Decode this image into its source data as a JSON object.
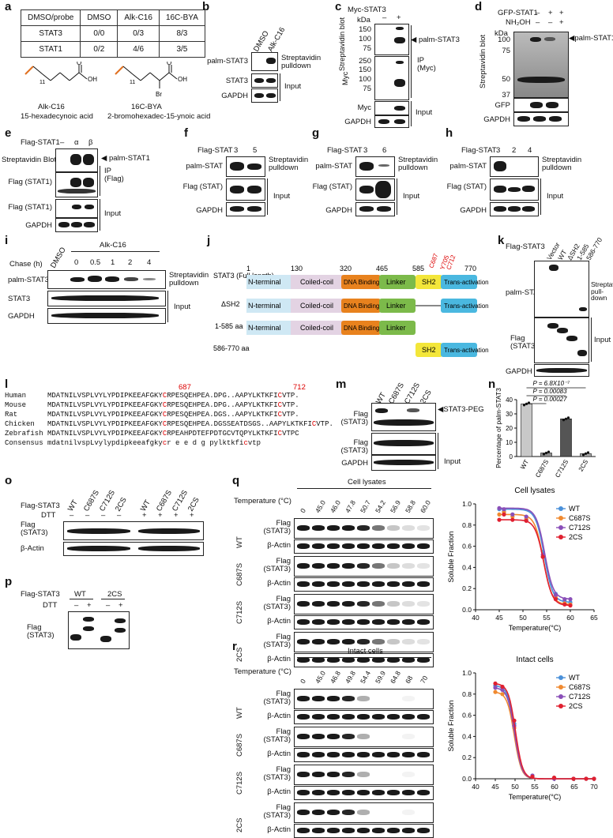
{
  "panels": [
    "a",
    "b",
    "c",
    "d",
    "e",
    "f",
    "g",
    "h",
    "i",
    "j",
    "k",
    "l",
    "m",
    "n",
    "o",
    "p",
    "q",
    "r"
  ],
  "a": {
    "header": [
      "DMSO/probe",
      "DMSO",
      "Alk-C16",
      "16C-BYA"
    ],
    "rows": [
      [
        "STAT3",
        "0/0",
        "0/3",
        "8/3"
      ],
      [
        "STAT1",
        "0/2",
        "4/6",
        "3/5"
      ]
    ],
    "chem1_label": "Alk-C16",
    "chem1_name": "15-hexadecynoic acid",
    "chem2_label": "16C-BYA",
    "chem2_name": "2-bromohexadec-15-ynoic acid",
    "subscript": "11",
    "br": "Br",
    "oh": "OH",
    "o": "O"
  },
  "b": {
    "cols": [
      "DMSO",
      "Alk-C16"
    ],
    "rows": [
      "palm-STAT3",
      "STAT3",
      "GAPDH"
    ],
    "right1": "Streptavidin pulldown",
    "right2": "Input"
  },
  "c": {
    "top": "Myc-STAT3",
    "signs": [
      "–",
      "+"
    ],
    "kda": "kDa",
    "left1": "Streptavidin blot",
    "left2": "Myc",
    "ladder1": [
      "150",
      "100",
      "75"
    ],
    "ladder2": [
      "250",
      "150",
      "100",
      "75"
    ],
    "arrow": "palm-STAT3",
    "ip": "IP (Myc)",
    "rows": [
      "Myc",
      "GAPDH"
    ],
    "input": "Input"
  },
  "d": {
    "top1": "GFP-STAT1",
    "top2": "NH₂OH",
    "signs1": [
      "–",
      "+",
      "+"
    ],
    "signs2": [
      "–",
      "–",
      "+"
    ],
    "kda": "kDa",
    "ladder": [
      "100",
      "75",
      "50",
      "37"
    ],
    "left": "Streptavidin blot",
    "arrow": "palm-STAT1",
    "rows": [
      "GFP",
      "GAPDH"
    ]
  },
  "e": {
    "top": "Flag-STAT1",
    "cols": [
      "–",
      "α",
      "β"
    ],
    "rows": [
      "Streptavidin Blot",
      "Flag (STAT1)",
      "Flag (STAT1)",
      "GAPDH"
    ],
    "arrow": "palm-STAT1",
    "ip": "IP (Flag)",
    "input": "Input"
  },
  "f": {
    "top": "Flag-STAT",
    "cols": [
      "3",
      "5"
    ],
    "rows": [
      "palm-STAT",
      "Flag (STAT)",
      "GAPDH"
    ],
    "right1": "Streptavidin pulldown",
    "right2": "Input"
  },
  "g": {
    "top": "Flag-STAT",
    "cols": [
      "3",
      "6"
    ],
    "rows": [
      "palm-STAT",
      "Flag (STAT)",
      "GAPDH"
    ],
    "right1": "Streptavidin pulldown",
    "right2": "Input"
  },
  "h": {
    "top": "Flag-STAT",
    "cols": [
      "3",
      "2",
      "4"
    ],
    "rows": [
      "palm-STAT",
      "Flag (STAT)",
      "GAPDH"
    ],
    "right1": "Streptavidin pulldown",
    "right2": "Input"
  },
  "i": {
    "treat": "Alk-C16",
    "chase": "Chase (h)",
    "cols": [
      "DMSO",
      "0",
      "0.5",
      "1",
      "2",
      "4"
    ],
    "rows": [
      "palm-STAT3",
      "STAT3",
      "GAPDH"
    ],
    "right1": "Streptavidin pulldown",
    "right2": "Input"
  },
  "j": {
    "numbers": [
      "1",
      "130",
      "320",
      "465",
      "585",
      "770"
    ],
    "sites": [
      "C687",
      "Y705",
      "C712"
    ],
    "full": "STAT3 (Full length)",
    "dsh2": "ΔSH2",
    "c585": "1-585 aa",
    "c586": "586-770 aa",
    "domains": [
      "N-terminal",
      "Coiled-coil",
      "DNA Binding",
      "Linker",
      "SH2",
      "Trans-activation"
    ],
    "colors": {
      "nterm": "#cfe8f4",
      "coil": "#e3d3e3",
      "dna": "#e8821e",
      "linker": "#7cba4a",
      "sh2": "#f3e63a",
      "trans": "#4ab8e0"
    }
  },
  "k": {
    "top": "Flag-STAT3",
    "cols": [
      "Vector",
      "WT",
      "ΔSH2",
      "1-585",
      "586-770"
    ],
    "rows": [
      "palm-STAT3",
      "Flag (STAT3)",
      "GAPDH"
    ],
    "right1": "Streptavidin pull-down",
    "right2": "Input"
  },
  "l": {
    "species": [
      "Human",
      "Mouse",
      "Rat",
      "Chicken",
      "Zebrafish",
      "Consensus"
    ],
    "pos1": "687",
    "pos2": "712",
    "seqs": [
      [
        "MDATNILVSPLVYLYPDIPKEEAFGKY",
        "C",
        "RPESQEHPEA.DPG..AAPYLKTKFI",
        "C",
        "VTP."
      ],
      [
        "MDATNILVSPLVYLYPDIPKEEAFGKY",
        "C",
        "RPESQEHPEA.DPG..AAPYLKTKFI",
        "C",
        "VTP."
      ],
      [
        "MDATNILVSPLVYLYPDIPKEEAFGKY",
        "C",
        "RPESQEHPEA.DGS..AAPYLKTKFI",
        "C",
        "VTP."
      ],
      [
        "MDATNILVSPLVYLYPDIPKEEAFGKY",
        "C",
        "RPESQEHPEA.DGSSEATDSGS..AAPYLKTKFI",
        "C",
        "VTP."
      ],
      [
        "MDATNILVSPLVYLYPDIPKEEAFGKY",
        "C",
        "RPEAHPDTEFPDTGCVTQPYLKTKFI",
        "C",
        "VTPC"
      ],
      [
        "mdatnilvspLvylypdipkeeafgky",
        "c",
        "r e     e  d g    pylktkfi",
        "c",
        "vtp"
      ]
    ]
  },
  "m": {
    "cols": [
      "WT",
      "C687S",
      "C712S",
      "2CS"
    ],
    "rows": [
      "Flag (STAT3)",
      "Flag (STAT3)",
      "GAPDH"
    ],
    "arrow": "STAT3-PEG",
    "input": "Input"
  },
  "n": {
    "chart_data": {
      "type": "bar",
      "categories": [
        "WT",
        "C687S",
        "C712S",
        "2CS"
      ],
      "values": [
        37,
        2.5,
        26.5,
        2
      ],
      "ylabel": "Percentage of palm-STAT3",
      "ylim": [
        0,
        40
      ],
      "yticks": [
        0,
        10,
        20,
        30,
        40
      ],
      "colors": [
        "#c8c8c8",
        "#909090",
        "#555555",
        "#aaaaaa"
      ],
      "pvalues": [
        "P = 6.8X10⁻⁷",
        "P = 0.00083",
        "P = 0.00027"
      ]
    }
  },
  "o": {
    "top": "Flag-STAT3",
    "cols": [
      "WT",
      "C687S",
      "C712S",
      "2CS",
      "WT",
      "C687S",
      "C712S",
      "2CS"
    ],
    "dtt": "DTT",
    "signs": [
      "–",
      "–",
      "–",
      "–",
      "+",
      "+",
      "+",
      "+"
    ],
    "rows": [
      "Flag (STAT3)",
      "β-Actin"
    ]
  },
  "p": {
    "top": "Flag-STAT3",
    "groups": [
      "WT",
      "2CS"
    ],
    "dtt": "DTT",
    "signs": [
      "–",
      "+",
      "–",
      "+"
    ],
    "rows": [
      "Flag (STAT3)"
    ]
  },
  "q": {
    "title": "Cell lysates",
    "temp_label": "Temperature (°C)",
    "temps": [
      "0",
      "45.0",
      "46.0",
      "47.8",
      "50.7",
      "54.2",
      "56.9",
      "58.8",
      "60.0"
    ],
    "groups": [
      "WT",
      "C687S",
      "C712S",
      "2CS"
    ],
    "rows": [
      "Flag (STAT3)",
      "β-Actin"
    ],
    "chart_data": {
      "type": "line",
      "title": "Cell lysates",
      "xlabel": "Temperature(°C)",
      "ylabel": "Soluble Fraction",
      "xlim": [
        40,
        65
      ],
      "ylim": [
        0,
        1.0
      ],
      "xticks": [
        40,
        45,
        50,
        55,
        60,
        65
      ],
      "yticks": [
        0,
        0.2,
        0.4,
        0.6,
        0.8,
        1.0
      ],
      "tm": [
        54.5,
        54.3,
        54.6,
        54.4
      ],
      "series": [
        {
          "name": "WT",
          "color": "#4a90d9",
          "x": [
            45,
            46,
            47.8,
            50.7,
            54.2,
            56.9,
            58.8,
            60
          ],
          "y": [
            0.95,
            0.93,
            0.9,
            0.85,
            0.55,
            0.15,
            0.08,
            0.07
          ]
        },
        {
          "name": "C687S",
          "color": "#f08a30",
          "x": [
            45,
            46,
            47.8,
            50.7,
            54.2,
            56.9,
            58.8,
            60
          ],
          "y": [
            0.9,
            0.92,
            0.88,
            0.86,
            0.5,
            0.12,
            0.06,
            0.05
          ]
        },
        {
          "name": "C712S",
          "color": "#8a4fb8",
          "x": [
            45,
            46,
            47.8,
            50.7,
            54.2,
            56.9,
            58.8,
            60
          ],
          "y": [
            0.96,
            0.95,
            0.9,
            0.88,
            0.52,
            0.14,
            0.1,
            0.1
          ]
        },
        {
          "name": "2CS",
          "color": "#e02030",
          "x": [
            45,
            46,
            47.8,
            50.7,
            54.2,
            56.9,
            58.8,
            60
          ],
          "y": [
            0.85,
            0.9,
            0.85,
            0.84,
            0.5,
            0.1,
            0.05,
            0.04
          ]
        }
      ]
    }
  },
  "r": {
    "title": "Intact cells",
    "temp_label": "Temperature (°C)",
    "temps": [
      "0",
      "45.0",
      "46.8",
      "49.8",
      "54.4",
      "59.9",
      "64.8",
      "68",
      "70"
    ],
    "groups": [
      "WT",
      "C687S",
      "C712S",
      "2CS"
    ],
    "rows": [
      "Flag (STAT3)",
      "β-Actin"
    ],
    "chart_data": {
      "type": "line",
      "title": "Intact cells",
      "xlabel": "Temperature(°C)",
      "ylabel": "Soluble Fraction",
      "xlim": [
        40,
        70
      ],
      "ylim": [
        0,
        1.0
      ],
      "xticks": [
        40,
        45,
        50,
        55,
        60,
        65,
        70
      ],
      "yticks": [
        0,
        0.2,
        0.4,
        0.6,
        0.8,
        1.0
      ],
      "tm": [
        50,
        49.8,
        49.9,
        50.1
      ],
      "series": [
        {
          "name": "WT",
          "color": "#4a90d9",
          "x": [
            45,
            46.8,
            49.8,
            54.4,
            59.9,
            64.8,
            68,
            70
          ],
          "y": [
            0.88,
            0.85,
            0.52,
            0.03,
            0.01,
            0.0,
            0.0,
            0.0
          ]
        },
        {
          "name": "C687S",
          "color": "#f08a30",
          "x": [
            45,
            46.8,
            49.8,
            54.4,
            59.9,
            64.8,
            68,
            70
          ],
          "y": [
            0.82,
            0.8,
            0.48,
            0.02,
            0.01,
            0.0,
            0.0,
            0.0
          ]
        },
        {
          "name": "C712S",
          "color": "#8a4fb8",
          "x": [
            45,
            46.8,
            49.8,
            54.4,
            59.9,
            64.8,
            68,
            70
          ],
          "y": [
            0.86,
            0.84,
            0.5,
            0.03,
            0.0,
            0.0,
            0.0,
            0.0
          ]
        },
        {
          "name": "2CS",
          "color": "#e02030",
          "x": [
            45,
            46.8,
            49.8,
            54.4,
            59.9,
            64.8,
            68,
            70
          ],
          "y": [
            0.9,
            0.87,
            0.55,
            0.02,
            0.01,
            0.0,
            0.0,
            0.0
          ]
        }
      ]
    }
  }
}
